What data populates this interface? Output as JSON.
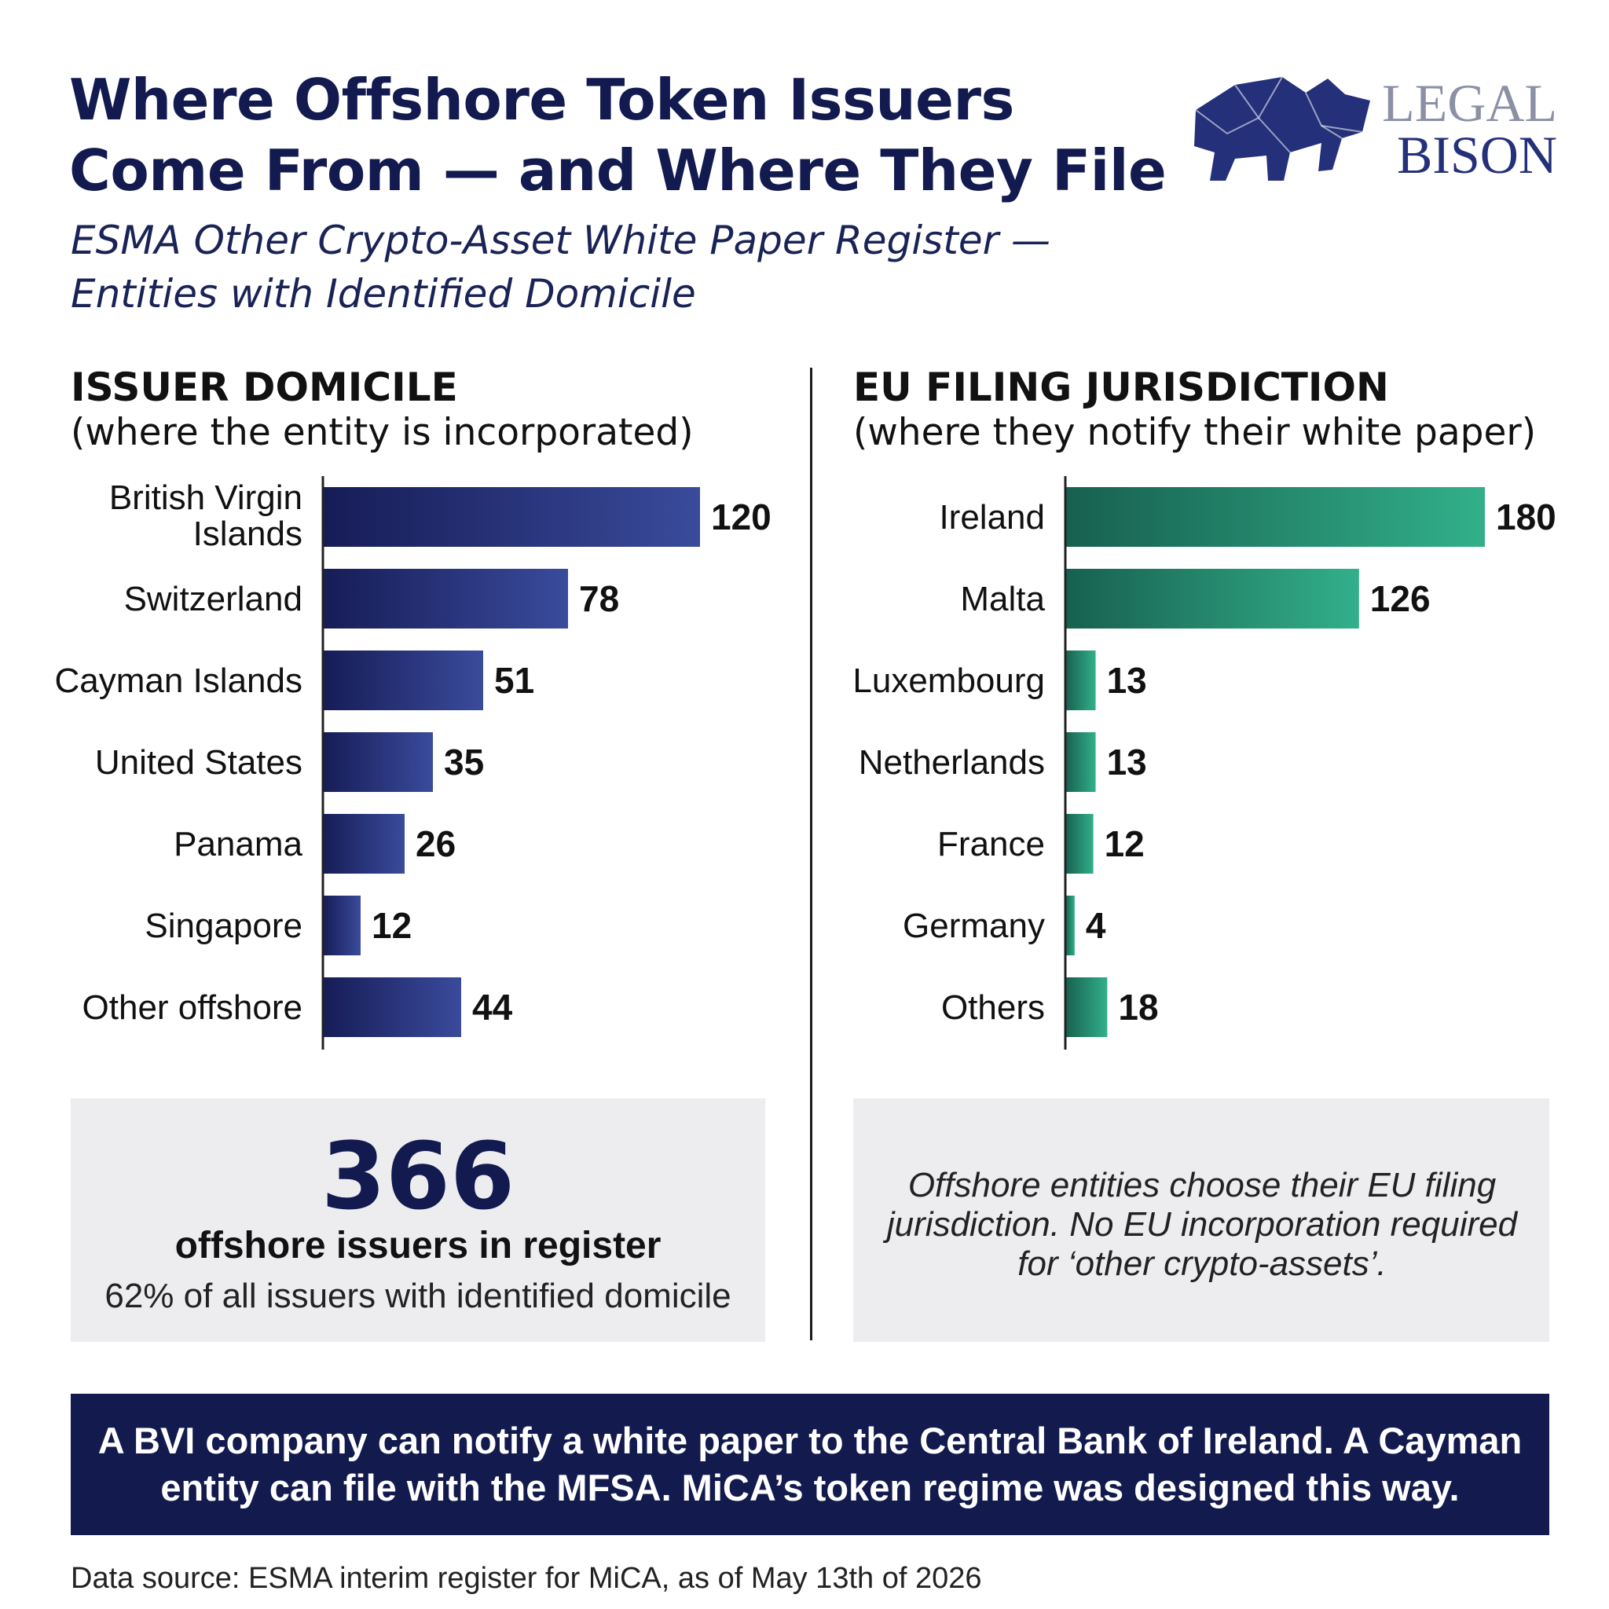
{
  "title": "Where Offshore Token Issuers Come From — and Where They File",
  "subtitle": "ESMA Other Crypto-Asset White Paper Register — Entities with Identified Domicile",
  "logo": {
    "line1": "LEGAL",
    "line2": "BISON",
    "icon": "bison-icon"
  },
  "colors": {
    "navy": "#121a4f",
    "bar_left_dark": "#161c56",
    "bar_left_light": "#3a4b9c",
    "bar_right_dark": "#17604f",
    "bar_right_light": "#32b08a",
    "panel": "#ededf0",
    "banner": "#131a4e"
  },
  "chart_data": [
    {
      "type": "bar",
      "orientation": "horizontal",
      "heading": "ISSUER DOMICILE",
      "subheading": "(where the entity is incorporated)",
      "categories": [
        "British Virgin Islands",
        "Switzerland",
        "Cayman Islands",
        "United States",
        "Panama",
        "Singapore",
        "Other offshore"
      ],
      "values": [
        120,
        78,
        51,
        35,
        26,
        12,
        44
      ],
      "xlim": [
        0,
        120
      ]
    },
    {
      "type": "bar",
      "orientation": "horizontal",
      "heading": "EU FILING JURISDICTION",
      "subheading": "(where they notify their white paper)",
      "categories": [
        "Ireland",
        "Malta",
        "Luxembourg",
        "Netherlands",
        "France",
        "Germany",
        "Others"
      ],
      "values": [
        180,
        126,
        13,
        13,
        12,
        4,
        18
      ],
      "xlim": [
        0,
        180
      ]
    }
  ],
  "stat": {
    "number": "366",
    "label": "offshore issuers in register",
    "sub": "62% of all issuers with identified domicile"
  },
  "note": "Offshore entities choose their EU filing jurisdiction. No EU incorporation required for ‘other crypto-assets’.",
  "banner": "A BVI company can notify a white paper to the Central Bank of Ireland. A Cayman entity can file with the MFSA. MiCA’s token regime was designed this way.",
  "source": "Data source: ESMA interim register for MiCA, as of May 13th of 2026"
}
